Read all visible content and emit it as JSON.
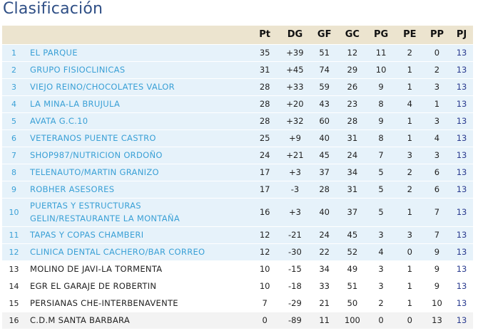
{
  "title": "Clasificación",
  "columns": [
    "Pt",
    "DG",
    "GF",
    "GC",
    "PG",
    "PE",
    "PP",
    "PJ"
  ],
  "rows": [
    {
      "pos": "1",
      "team": "EL PARQUE",
      "pt": "35",
      "dg": "+39",
      "gf": "51",
      "gc": "12",
      "pg": "11",
      "pe": "2",
      "pp": "0",
      "pj": "13"
    },
    {
      "pos": "2",
      "team": "GRUPO FISIOCLINICAS",
      "pt": "31",
      "dg": "+45",
      "gf": "74",
      "gc": "29",
      "pg": "10",
      "pe": "1",
      "pp": "2",
      "pj": "13"
    },
    {
      "pos": "3",
      "team": "VIEJO REINO/CHOCOLATES VALOR",
      "pt": "28",
      "dg": "+33",
      "gf": "59",
      "gc": "26",
      "pg": "9",
      "pe": "1",
      "pp": "3",
      "pj": "13"
    },
    {
      "pos": "4",
      "team": "LA MINA-LA BRUJULA",
      "pt": "28",
      "dg": "+20",
      "gf": "43",
      "gc": "23",
      "pg": "8",
      "pe": "4",
      "pp": "1",
      "pj": "13"
    },
    {
      "pos": "5",
      "team": "AVATA G.C.10",
      "pt": "28",
      "dg": "+32",
      "gf": "60",
      "gc": "28",
      "pg": "9",
      "pe": "1",
      "pp": "3",
      "pj": "13"
    },
    {
      "pos": "6",
      "team": "VETERANOS PUENTE CASTRO",
      "pt": "25",
      "dg": "+9",
      "gf": "40",
      "gc": "31",
      "pg": "8",
      "pe": "1",
      "pp": "4",
      "pj": "13"
    },
    {
      "pos": "7",
      "team": "SHOP987/NUTRICION ORDOÑO",
      "pt": "24",
      "dg": "+21",
      "gf": "45",
      "gc": "24",
      "pg": "7",
      "pe": "3",
      "pp": "3",
      "pj": "13"
    },
    {
      "pos": "8",
      "team": "TELENAUTO/MARTIN GRANIZO",
      "pt": "17",
      "dg": "+3",
      "gf": "37",
      "gc": "34",
      "pg": "5",
      "pe": "2",
      "pp": "6",
      "pj": "13"
    },
    {
      "pos": "9",
      "team": "ROBHER ASESORES",
      "pt": "17",
      "dg": "-3",
      "gf": "28",
      "gc": "31",
      "pg": "5",
      "pe": "2",
      "pp": "6",
      "pj": "13"
    },
    {
      "pos": "10",
      "team_line1": "PUERTAS Y ESTRUCTURAS",
      "team_line2": "GELIN/RESTAURANTE LA MONTAÑA",
      "pt": "16",
      "dg": "+3",
      "gf": "40",
      "gc": "37",
      "pg": "5",
      "pe": "1",
      "pp": "7",
      "pj": "13"
    },
    {
      "pos": "11",
      "team": "TAPAS Y COPAS CHAMBERI",
      "pt": "12",
      "dg": "-21",
      "gf": "24",
      "gc": "45",
      "pg": "3",
      "pe": "3",
      "pp": "7",
      "pj": "13"
    },
    {
      "pos": "12",
      "team": "CLINICA DENTAL CACHERO/BAR CORREO",
      "pt": "12",
      "dg": "-30",
      "gf": "22",
      "gc": "52",
      "pg": "4",
      "pe": "0",
      "pp": "9",
      "pj": "13"
    },
    {
      "pos": "13",
      "team": "MOLINO DE JAVI-LA TORMENTA",
      "pt": "10",
      "dg": "-15",
      "gf": "34",
      "gc": "49",
      "pg": "3",
      "pe": "1",
      "pp": "9",
      "pj": "13"
    },
    {
      "pos": "14",
      "team": "EGR EL GARAJE DE ROBERTIN",
      "pt": "10",
      "dg": "-18",
      "gf": "33",
      "gc": "51",
      "pg": "3",
      "pe": "1",
      "pp": "9",
      "pj": "13"
    },
    {
      "pos": "15",
      "team": "PERSIANAS CHE-INTERBENAVENTE",
      "pt": "7",
      "dg": "-29",
      "gf": "21",
      "gc": "50",
      "pg": "2",
      "pe": "1",
      "pp": "10",
      "pj": "13"
    },
    {
      "pos": "16",
      "team": "C.D.M SANTA BARBARA",
      "pt": "0",
      "dg": "-89",
      "gf": "11",
      "gc": "100",
      "pg": "0",
      "pe": "0",
      "pp": "13",
      "pj": "13"
    }
  ],
  "colors": {
    "title": "#2f4f86",
    "header_bg": "#ece4cf",
    "zone_row_bg": "#e6f2fa",
    "zone_text": "#3aa0d6",
    "pj_text": "#2a3b8f"
  }
}
